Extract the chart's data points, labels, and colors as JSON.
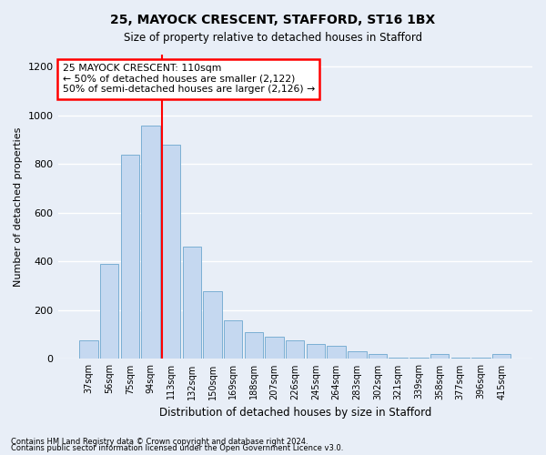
{
  "title1": "25, MAYOCK CRESCENT, STAFFORD, ST16 1BX",
  "title2": "Size of property relative to detached houses in Stafford",
  "xlabel": "Distribution of detached houses by size in Stafford",
  "ylabel": "Number of detached properties",
  "categories": [
    "37sqm",
    "56sqm",
    "75sqm",
    "94sqm",
    "113sqm",
    "132sqm",
    "150sqm",
    "169sqm",
    "188sqm",
    "207sqm",
    "226sqm",
    "245sqm",
    "264sqm",
    "283sqm",
    "302sqm",
    "321sqm",
    "339sqm",
    "358sqm",
    "377sqm",
    "396sqm",
    "415sqm"
  ],
  "values": [
    75,
    390,
    840,
    960,
    880,
    460,
    280,
    160,
    110,
    90,
    75,
    60,
    55,
    30,
    20,
    5,
    5,
    20,
    5,
    5,
    20
  ],
  "bar_color": "#c5d8f0",
  "bar_edge_color": "#7bafd4",
  "red_line_index": 4,
  "annotation_text": "25 MAYOCK CRESCENT: 110sqm\n← 50% of detached houses are smaller (2,122)\n50% of semi-detached houses are larger (2,126) →",
  "annotation_box_color": "white",
  "annotation_box_edge_color": "red",
  "ylim": [
    0,
    1250
  ],
  "yticks": [
    0,
    200,
    400,
    600,
    800,
    1000,
    1200
  ],
  "footnote1": "Contains HM Land Registry data © Crown copyright and database right 2024.",
  "footnote2": "Contains public sector information licensed under the Open Government Licence v3.0.",
  "background_color": "#e8eef7"
}
